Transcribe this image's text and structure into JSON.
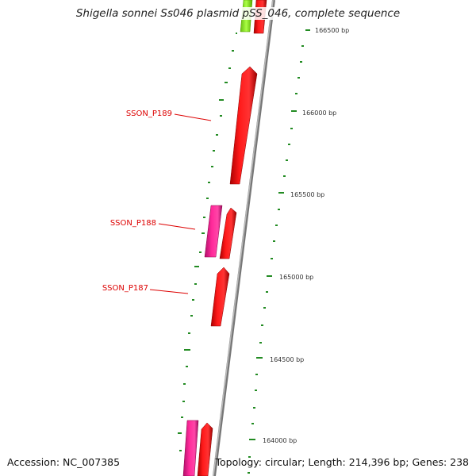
{
  "title": "Shigella sonnei Ss046 plasmid pSS_046, complete sequence",
  "accession_text": "Accession: NC_007385",
  "topology_text": "Topology: circular; Length: 214,396 bp; Genes: 238",
  "colors": {
    "gene_forward": "#ff0000",
    "gene_alt": "#ff1493",
    "gene_green": "#99ee33",
    "backbone": "#888888",
    "gc_ticks": "#228b22",
    "gene_label": "#dd0000"
  },
  "position_labels": [
    "166500 bp",
    "166000 bp",
    "165500 bp",
    "165000 bp",
    "164500 bp",
    "164000 bp"
  ],
  "gene_labels": [
    "SSON_P189",
    "SSON_P188",
    "SSON_P187"
  ]
}
